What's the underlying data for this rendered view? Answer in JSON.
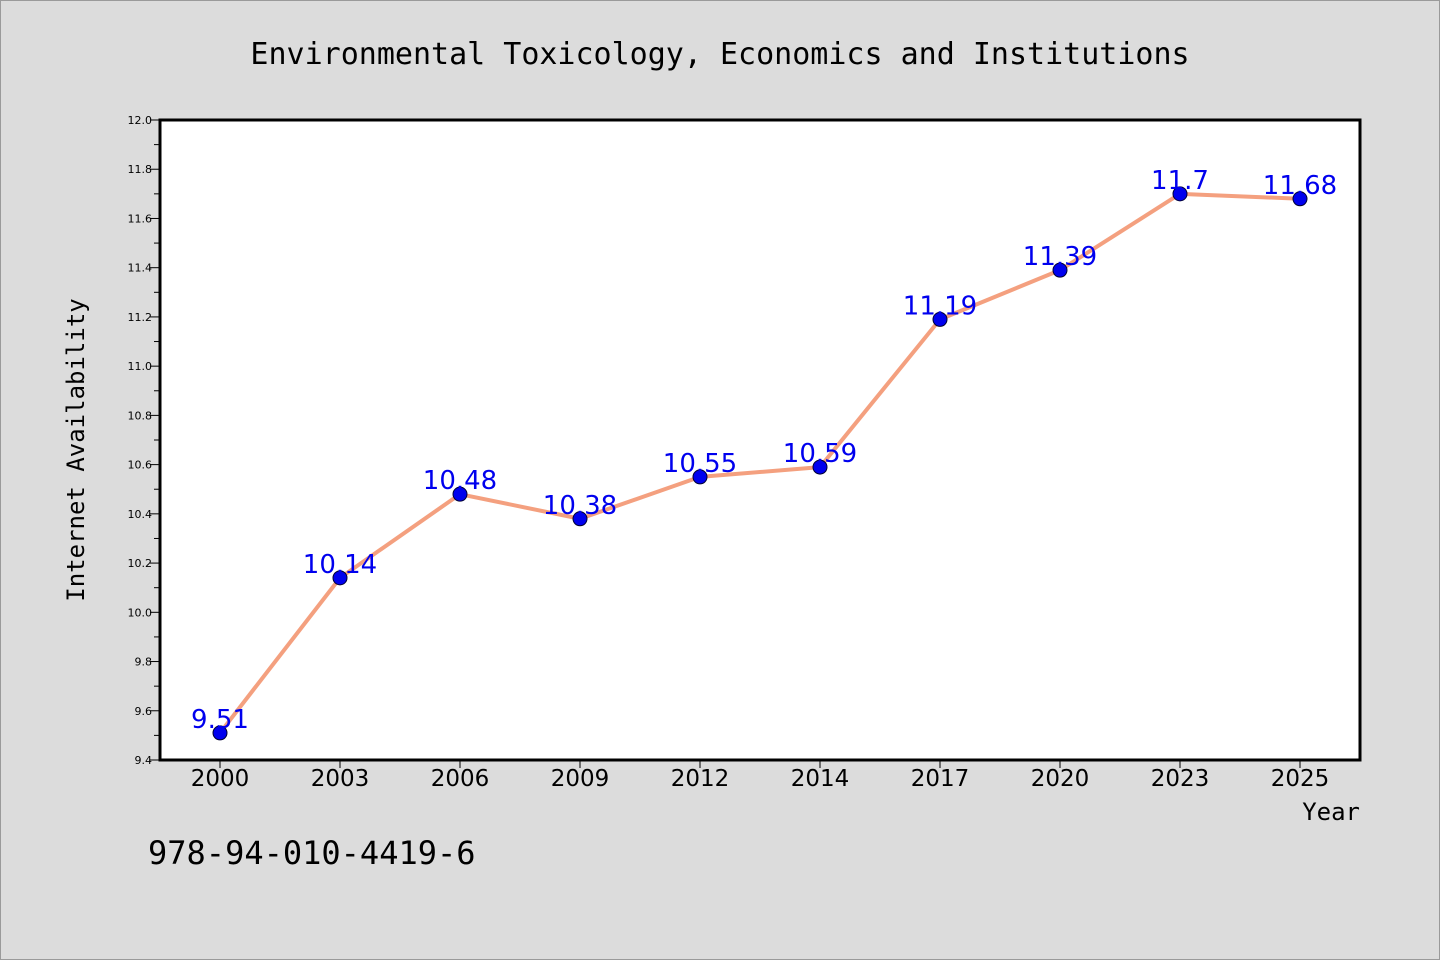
{
  "chart_data": {
    "type": "line",
    "title": "Environmental Toxicology, Economics and Institutions",
    "xlabel": "Year",
    "ylabel": "Internet Availability",
    "categories": [
      "2000",
      "2003",
      "2006",
      "2009",
      "2012",
      "2014",
      "2017",
      "2020",
      "2023",
      "2025"
    ],
    "series": [
      {
        "values": [
          9.51,
          10.14,
          10.48,
          10.38,
          10.55,
          10.59,
          11.19,
          11.39,
          11.7,
          11.68
        ],
        "data_labels": [
          "9.51",
          "10.14",
          "10.48",
          "10.38",
          "10.55",
          "10.59",
          "11.19",
          "11.39",
          "11.7",
          "11.68"
        ],
        "line_color": "#f4a07f",
        "marker_color": "#0000ee"
      }
    ],
    "ylim": [
      9.4,
      12.0
    ],
    "yticks": [
      "9.4",
      "9.6",
      "9.8",
      "10.0",
      "10.2",
      "10.4",
      "10.6",
      "10.8",
      "11.0",
      "11.2",
      "11.4",
      "11.6",
      "11.8",
      "12.0"
    ],
    "grid": false,
    "legend": "none",
    "label_color": "#0000ee"
  },
  "footer_text": "978-94-010-4419-6"
}
